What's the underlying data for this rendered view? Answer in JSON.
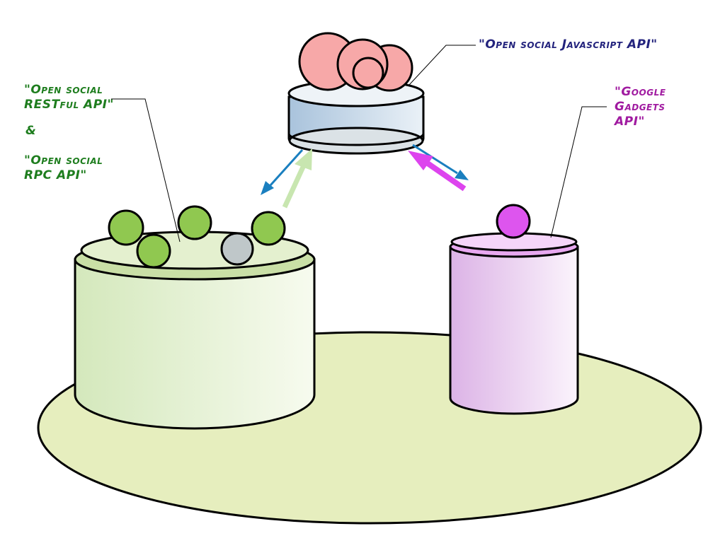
{
  "labels": {
    "restful_line1": "\"Open social",
    "restful_line2": "RESTful API\"",
    "ampersand": "&",
    "rpc_line1": "\"Open social",
    "rpc_line2": "RPC API\"",
    "javascript_api": "\"Open social Javascript API\"",
    "gadgets_line1": "\"Google",
    "gadgets_line2": "Gadgets",
    "gadgets_line3": "API\""
  },
  "colors": {
    "green_text": "#1e7d1e",
    "navy_text": "#23237d",
    "purple_text": "#a01aa0",
    "blue_arrow": "#1a7fbf",
    "light_green_arrow": "#c8e6b0",
    "magenta_arrow": "#dd44ee",
    "ground": "#e6eebe"
  }
}
